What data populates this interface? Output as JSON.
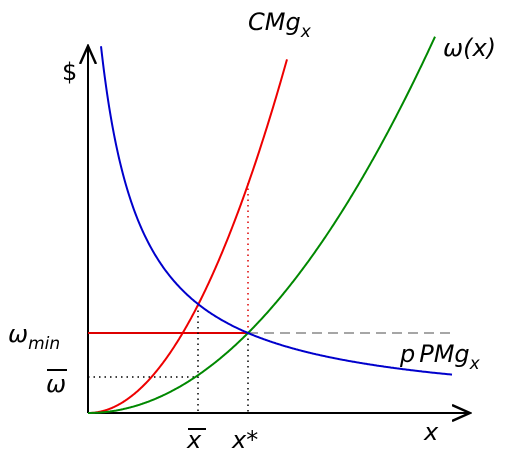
{
  "axes": {
    "y_label": "$",
    "x_label": "x"
  },
  "curves": {
    "marginal_cost": {
      "main": "CMg",
      "sub": "x"
    },
    "wage": "ω(x)",
    "marginal_product_value": {
      "pre": "p",
      "main": "PMg",
      "sub": "x"
    }
  },
  "levels": {
    "w_min": {
      "main": "ω",
      "sub": "min"
    },
    "w_bar": "ω",
    "x_bar": "x",
    "x_star": "x*"
  }
}
